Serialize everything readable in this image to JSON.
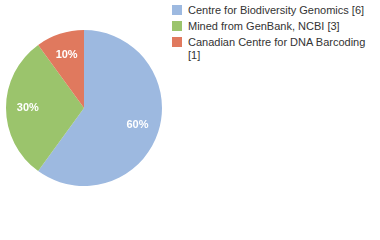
{
  "chart_data": {
    "type": "pie",
    "categories": [
      "Centre for Biodiversity Genomics [6]",
      "Mined from GenBank, NCBI [3]",
      "Canadian Centre for DNA Barcoding [1]"
    ],
    "values": [
      60,
      30,
      10
    ],
    "value_labels": [
      "60%",
      "30%",
      "10%"
    ],
    "colors": [
      "#9db9e0",
      "#9bc46c",
      "#e0795e"
    ],
    "data_labels": true,
    "legend": "top-right"
  }
}
